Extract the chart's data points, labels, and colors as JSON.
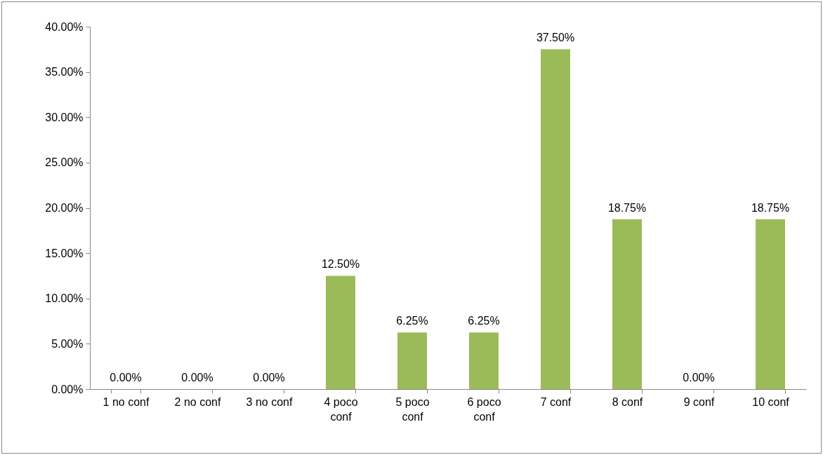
{
  "chart_data": {
    "type": "bar",
    "categories": [
      "1 no conf",
      "2 no conf",
      "3 no conf",
      "4 poco conf",
      "5 poco conf",
      "6 poco conf",
      "7 conf",
      "8  conf",
      "9 conf",
      "10 conf"
    ],
    "values": [
      0,
      0,
      0,
      12.5,
      6.25,
      6.25,
      37.5,
      18.75,
      0,
      18.75
    ],
    "value_labels": [
      "0.00%",
      "0.00%",
      "0.00%",
      "12.50%",
      "6.25%",
      "6.25%",
      "37.50%",
      "18.75%",
      "0.00%",
      "18.75%"
    ],
    "color": "#9bbb59",
    "ylim": [
      0,
      40
    ],
    "yticks": [
      {
        "value": 0,
        "label": "0.00%"
      },
      {
        "value": 5,
        "label": "5.00%"
      },
      {
        "value": 10,
        "label": "10.00%"
      },
      {
        "value": 15,
        "label": "15.00%"
      },
      {
        "value": 20,
        "label": "20.00%"
      },
      {
        "value": 25,
        "label": "25.00%"
      },
      {
        "value": 30,
        "label": "30.00%"
      },
      {
        "value": 35,
        "label": "35.00%"
      },
      {
        "value": 40,
        "label": "40.00%"
      }
    ],
    "grid": false
  }
}
